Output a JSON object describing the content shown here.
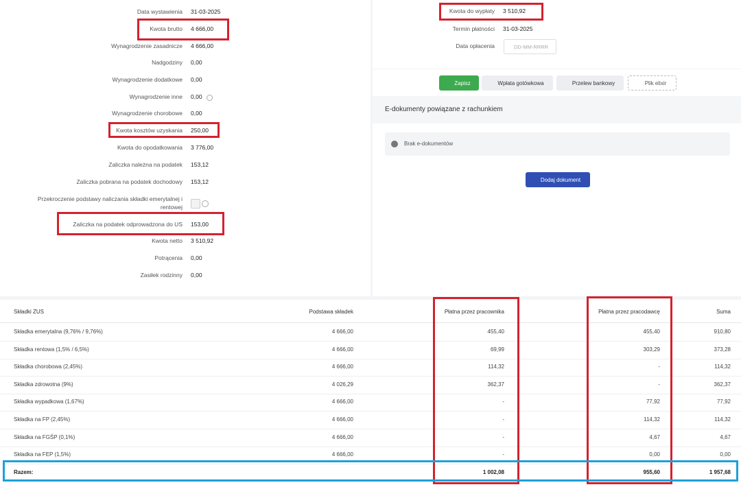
{
  "left_fields": [
    {
      "label": "Data wystawienia",
      "value": "31-03-2025"
    },
    {
      "label": "Kwota brutto",
      "value": "4 666,00"
    },
    {
      "label": "Wynagrodzenie zasadnicze",
      "value": "4 666,00"
    },
    {
      "label": "Nadgodziny",
      "value": "0,00"
    },
    {
      "label": "Wynagrodzenie dodatkowe",
      "value": "0,00"
    },
    {
      "label": "Wynagrodzenie inne",
      "value": "0,00"
    },
    {
      "label": "Wynagrodzenie chorobowe",
      "value": "0,00"
    },
    {
      "label": "Kwota kosztów uzyskania",
      "value": "250,00"
    },
    {
      "label": "Kwota do opodatkowania",
      "value": "3 776,00"
    },
    {
      "label": "Zaliczka należna na podatek",
      "value": "153,12"
    },
    {
      "label": "Zaliczka pobrana na podatek dochodowy",
      "value": "153,12"
    },
    {
      "label": "Przekroczenie podstawy naliczania składki emerytalnej i rentowej"
    },
    {
      "label": "Zaliczka na podatek odprowadzona do US",
      "value": "153,00"
    },
    {
      "label": "Kwota netto",
      "value": "3 510,92"
    },
    {
      "label": "Potrącenia",
      "value": "0,00"
    },
    {
      "label": "Zasiłek rodzinny",
      "value": "0,00"
    }
  ],
  "right_fields": [
    {
      "label": "Kwota do wypłaty",
      "value": "3 510,92"
    },
    {
      "label": "Termin płatności",
      "value": "31-03-2025"
    },
    {
      "label": "Data opłacenia",
      "placeholder": "DD-MM-RRRR"
    }
  ],
  "buttons": [
    "Zapisz",
    "Wpłata gotówkowa",
    "Przelew bankowy",
    "Plik elixir"
  ],
  "edocs": {
    "title": "E-dokumenty powiązane z rachunkiem",
    "empty": "Brak e-dokumentów",
    "add_button": "Dodaj dokument"
  },
  "table": {
    "headers": [
      "Składki ZUS",
      "Podstawa składek",
      "Płatna przez pracownika",
      "Płatna przez pracodawcę",
      "Suma"
    ],
    "rows": [
      [
        "Składka emerytalna (9,76% / 9,76%)",
        "4 666,00",
        "455,40",
        "455,40",
        "910,80"
      ],
      [
        "Składka rentowa (1,5% / 6,5%)",
        "4 666,00",
        "69,99",
        "303,29",
        "373,28"
      ],
      [
        "Składka chorobowa (2,45%)",
        "4 666,00",
        "114,32",
        "-",
        "114,32"
      ],
      [
        "Składka zdrowotna (9%)",
        "4 026,29",
        "362,37",
        "-",
        "362,37"
      ],
      [
        "Składka wypadkowa (1,67%)",
        "4 666,00",
        "-",
        "77,92",
        "77,92"
      ],
      [
        "Składka na FP (2,45%)",
        "4 666,00",
        "-",
        "114,32",
        "114,32"
      ],
      [
        "Składka na FGŚP (0,1%)",
        "4 666,00",
        "-",
        "4,67",
        "4,67"
      ],
      [
        "Składka na FEP (1,5%)",
        "4 666,00",
        "-",
        "0,00",
        "0,00"
      ]
    ],
    "total": {
      "label": "Razem:",
      "employee": "1 002,08",
      "employer": "955,60",
      "sum": "1 957,68"
    }
  }
}
